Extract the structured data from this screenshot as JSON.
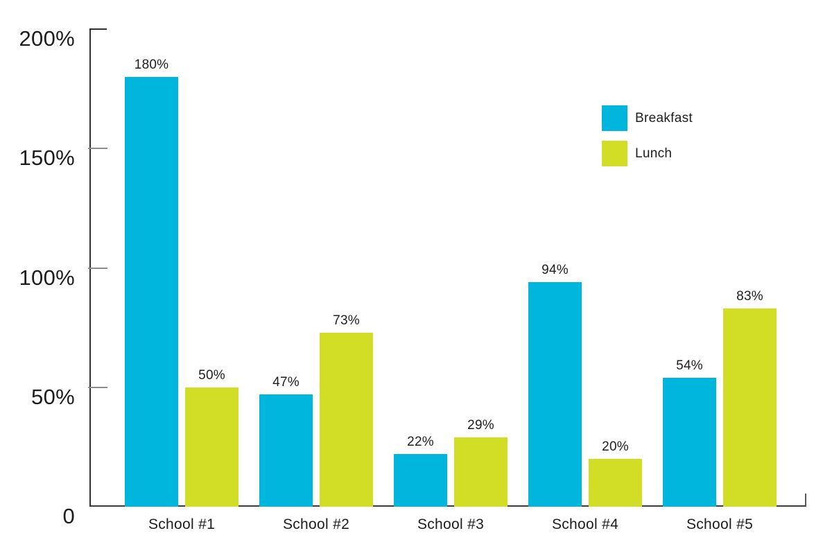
{
  "chart_data": {
    "type": "bar",
    "title": "",
    "xlabel": "",
    "ylabel": "",
    "categories": [
      "School #1",
      "School #2",
      "School #3",
      "School #4",
      "School #5"
    ],
    "series": [
      {
        "name": "Breakfast",
        "color": "#00B6DC",
        "values": [
          180,
          47,
          22,
          94,
          54
        ],
        "labels": [
          "180%",
          "47%",
          "22%",
          "94%",
          "54%"
        ]
      },
      {
        "name": "Lunch",
        "color": "#D2DE26",
        "values": [
          50,
          73,
          29,
          20,
          83
        ],
        "labels": [
          "50%",
          "73%",
          "29%",
          "20%",
          "83%"
        ]
      }
    ],
    "ylim": [
      0,
      200
    ],
    "yticks": [
      {
        "label": "200%",
        "value": 200
      },
      {
        "label": "150%",
        "value": 150
      },
      {
        "label": "100%",
        "value": 100
      },
      {
        "label": "50%",
        "value": 50
      },
      {
        "label": "0",
        "value": 0
      }
    ],
    "legend_position": "top-right",
    "grid": false
  },
  "colors": {
    "axis": "#2f2f2f",
    "minor_tick": "#8c8c8c",
    "text": "#1d1d1d",
    "background": "#ffffff"
  }
}
